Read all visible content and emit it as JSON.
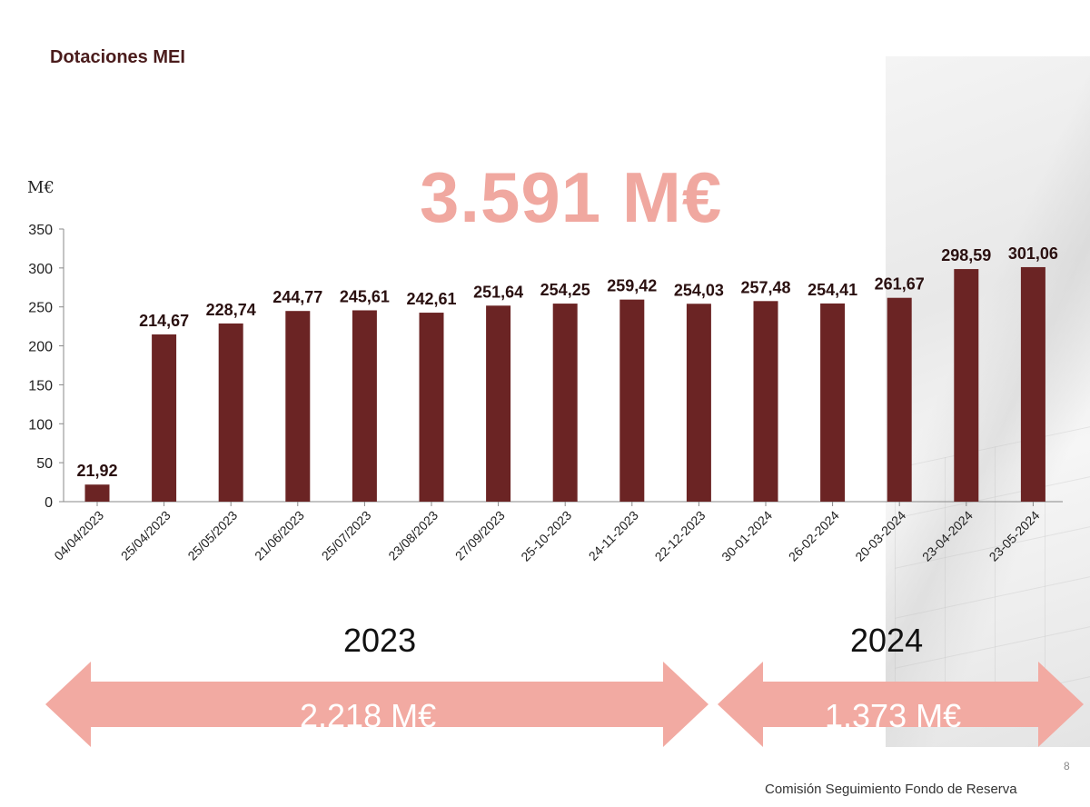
{
  "slide": {
    "title": "Dotaciones MEI",
    "total_label": "3.591 M€",
    "page_number": "8",
    "footer": "Comisión Seguimiento Fondo de Reserva"
  },
  "periods": [
    {
      "year": "2023",
      "total": "2.218 M€"
    },
    {
      "year": "2024",
      "total": "1.373 M€"
    }
  ],
  "colors": {
    "bar": "#6b2424",
    "accent_pink": "#f0a8a0",
    "title": "#4a1c1c"
  },
  "chart_data": {
    "type": "bar",
    "title": "",
    "xlabel": "",
    "ylabel": "M€",
    "ylim": [
      0,
      350
    ],
    "yticks": [
      0,
      50,
      100,
      150,
      200,
      250,
      300,
      350
    ],
    "grid": false,
    "categories": [
      "04/04/2023",
      "25/04/2023",
      "25/05/2023",
      "21/06/2023",
      "25/07/2023",
      "23/08/2023",
      "27/09/2023",
      "25-10-2023",
      "24-11-2023",
      "22-12-2023",
      "30-01-2024",
      "26-02-2024",
      "20-03-2024",
      "23-04-2024",
      "23-05-2024"
    ],
    "values": [
      21.92,
      214.67,
      228.74,
      244.77,
      245.61,
      242.61,
      251.64,
      254.25,
      259.42,
      254.03,
      257.48,
      254.41,
      261.67,
      298.59,
      301.06
    ],
    "value_labels": [
      "21,92",
      "214,67",
      "228,74",
      "244,77",
      "245,61",
      "242,61",
      "251,64",
      "254,25",
      "259,42",
      "254,03",
      "257,48",
      "254,41",
      "261,67",
      "298,59",
      "301,06"
    ]
  }
}
